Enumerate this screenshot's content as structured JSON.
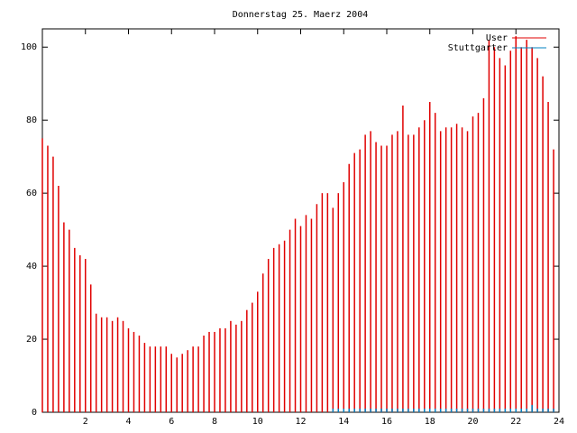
{
  "chart_data": {
    "type": "impulses",
    "title": "Donnerstag 25. Maerz 2004",
    "x": [
      0,
      0.25,
      0.5,
      0.75,
      1,
      1.25,
      1.5,
      1.75,
      2,
      2.25,
      2.5,
      2.75,
      3,
      3.25,
      3.5,
      3.75,
      4,
      4.25,
      4.5,
      4.75,
      5,
      5.25,
      5.5,
      5.75,
      6,
      6.25,
      6.5,
      6.75,
      7,
      7.25,
      7.5,
      7.75,
      8,
      8.25,
      8.5,
      8.75,
      9,
      9.25,
      9.5,
      9.75,
      10,
      10.25,
      10.5,
      10.75,
      11,
      11.25,
      11.5,
      11.75,
      12,
      12.25,
      12.5,
      12.75,
      13,
      13.25,
      13.5,
      13.75,
      14,
      14.25,
      14.5,
      14.75,
      15,
      15.25,
      15.5,
      15.75,
      16,
      16.25,
      16.5,
      16.75,
      17,
      17.25,
      17.5,
      17.75,
      18,
      18.25,
      18.5,
      18.75,
      19,
      19.25,
      19.5,
      19.75,
      20,
      20.25,
      20.5,
      20.75,
      21,
      21.25,
      21.5,
      21.75,
      22,
      22.25,
      22.5,
      22.75,
      23,
      23.25,
      23.5,
      23.75
    ],
    "series": [
      {
        "name": "User",
        "color": "#e00000",
        "values": [
          75,
          73,
          70,
          62,
          52,
          50,
          45,
          43,
          42,
          35,
          27,
          26,
          26,
          25,
          26,
          25,
          23,
          22,
          21,
          19,
          18,
          18,
          18,
          18,
          16,
          15,
          16,
          17,
          18,
          18,
          21,
          22,
          22,
          23,
          23,
          25,
          24,
          25,
          28,
          30,
          33,
          38,
          42,
          45,
          46,
          47,
          50,
          53,
          51,
          54,
          53,
          57,
          60,
          60,
          56,
          60,
          63,
          68,
          71,
          72,
          76,
          77,
          74,
          73,
          73,
          76,
          77,
          84,
          76,
          76,
          78,
          80,
          85,
          82,
          77,
          78,
          78,
          79,
          78,
          77,
          81,
          82,
          86,
          102,
          100,
          97,
          95,
          99,
          103,
          100,
          102,
          100,
          97,
          92,
          85,
          72
        ]
      },
      {
        "name": "Stuttgarter",
        "color": "#0080c0",
        "values": [
          0,
          0,
          0,
          0,
          0,
          0,
          0,
          0,
          0,
          0,
          0,
          0,
          0,
          0,
          0,
          0,
          0,
          0,
          0,
          0,
          0,
          0,
          0,
          0,
          0,
          0,
          0,
          0,
          0,
          0,
          0,
          0,
          0,
          0,
          0,
          0,
          0,
          0,
          0,
          0,
          0,
          0,
          0,
          0,
          0,
          0,
          0,
          0,
          0,
          0,
          0,
          0,
          0,
          0,
          1,
          1,
          1,
          1,
          1,
          1,
          1,
          1,
          1,
          1,
          1,
          1,
          1,
          1,
          1,
          1,
          1,
          1,
          1,
          1,
          1,
          1,
          1,
          1,
          1,
          1,
          1,
          1,
          1,
          1,
          1,
          1,
          1,
          1,
          1,
          1,
          1,
          2,
          1,
          1,
          1,
          1
        ]
      }
    ],
    "xlim": [
      0,
      24
    ],
    "xticks": [
      2,
      4,
      6,
      8,
      10,
      12,
      14,
      16,
      18,
      20,
      22,
      24
    ],
    "ylim": [
      0,
      105
    ],
    "yticks": [
      0,
      20,
      40,
      60,
      80,
      100
    ],
    "legend": "top right"
  }
}
